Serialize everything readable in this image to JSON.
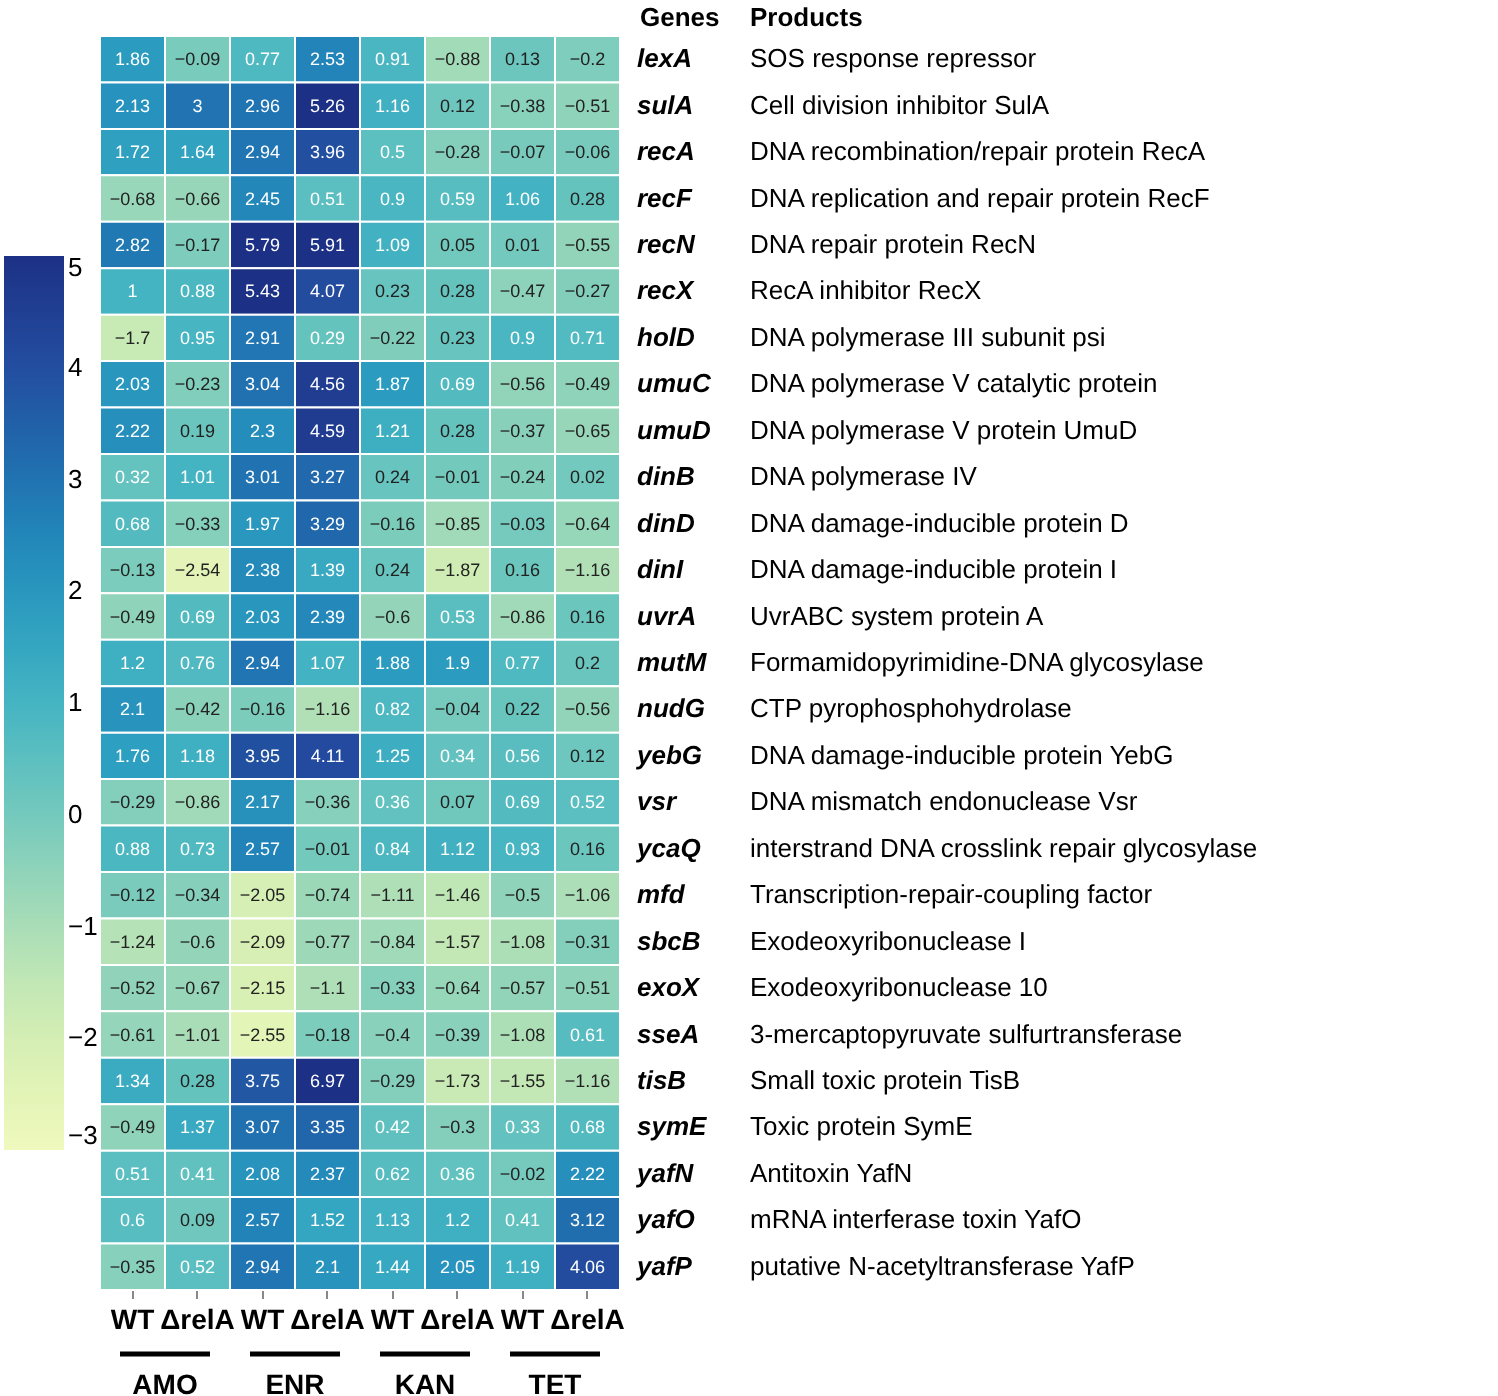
{
  "chart_data": {
    "type": "heatmap",
    "categories": [
      "WT",
      "ΔrelA",
      "WT",
      "ΔrelA",
      "WT",
      "ΔrelA",
      "WT",
      "ΔrelA"
    ],
    "y_categories": [
      "lexA",
      "sulA",
      "recA",
      "recF",
      "recN",
      "recX",
      "holD",
      "umuC",
      "umuD",
      "dinB",
      "dinD",
      "dinI",
      "uvrA",
      "mutM",
      "nudG",
      "yebG",
      "vsr",
      "ycaQ",
      "mfd",
      "sbcB",
      "exoX",
      "sseA",
      "tisB",
      "symE",
      "yafN",
      "yafO",
      "yafP"
    ],
    "y2_categories": [
      "SOS response repressor",
      "Cell division inhibitor SulA",
      "DNA recombination/repair protein RecA",
      "DNA replication and repair protein RecF",
      "DNA repair protein RecN",
      "RecA inhibitor RecX",
      "DNA polymerase III subunit psi",
      "DNA polymerase V catalytic protein",
      "DNA polymerase V protein UmuD",
      "DNA polymerase IV",
      "DNA damage-inducible protein D",
      "DNA damage-inducible protein I",
      "UvrABC system protein A",
      "Formamidopyrimidine-DNA glycosylase",
      "CTP pyrophosphohydrolase",
      "DNA damage-inducible protein YebG",
      "DNA mismatch endonuclease Vsr",
      "interstrand DNA crosslink repair glycosylase",
      "Transcription-repair-coupling factor",
      "Exodeoxyribonuclease I",
      "Exodeoxyribonuclease 10",
      "3-mercaptopyruvate sulfurtransferase",
      "Small toxic protein TisB",
      "Toxic protein SymE",
      "Antitoxin YafN",
      "mRNA interferase toxin YafO",
      "putative N-acetyltransferase YafP"
    ],
    "cells": [
      [
        1.86,
        -0.09,
        0.77,
        2.53,
        0.91,
        -0.88,
        0.13,
        -0.2
      ],
      [
        2.13,
        3,
        2.96,
        5.26,
        1.16,
        0.12,
        -0.38,
        -0.51
      ],
      [
        1.72,
        1.64,
        2.94,
        3.96,
        0.5,
        -0.28,
        -0.07,
        -0.06
      ],
      [
        -0.68,
        -0.66,
        2.45,
        0.51,
        0.9,
        0.59,
        1.06,
        0.28
      ],
      [
        2.82,
        -0.17,
        5.79,
        5.91,
        1.09,
        0.05,
        0.01,
        -0.55
      ],
      [
        1,
        0.88,
        5.43,
        4.07,
        0.23,
        0.28,
        -0.47,
        -0.27
      ],
      [
        -1.7,
        0.95,
        2.91,
        0.29,
        -0.22,
        0.23,
        0.9,
        0.71
      ],
      [
        2.03,
        -0.23,
        3.04,
        4.56,
        1.87,
        0.69,
        -0.56,
        -0.49
      ],
      [
        2.22,
        0.19,
        2.3,
        4.59,
        1.21,
        0.28,
        -0.37,
        -0.65
      ],
      [
        0.32,
        1.01,
        3.01,
        3.27,
        0.24,
        -0.01,
        -0.24,
        0.02
      ],
      [
        0.68,
        -0.33,
        1.97,
        3.29,
        -0.16,
        -0.85,
        -0.03,
        -0.64
      ],
      [
        -0.13,
        -2.54,
        2.38,
        1.39,
        0.24,
        -1.87,
        0.16,
        -1.16
      ],
      [
        -0.49,
        0.69,
        2.03,
        2.39,
        -0.6,
        0.53,
        -0.86,
        0.16
      ],
      [
        1.2,
        0.76,
        2.94,
        1.07,
        1.88,
        1.9,
        0.77,
        0.2
      ],
      [
        2.1,
        -0.42,
        -0.16,
        -1.16,
        0.82,
        -0.04,
        0.22,
        -0.56
      ],
      [
        1.76,
        1.18,
        3.95,
        4.11,
        1.25,
        0.34,
        0.56,
        0.12
      ],
      [
        -0.29,
        -0.86,
        2.17,
        -0.36,
        0.36,
        0.07,
        0.69,
        0.52
      ],
      [
        0.88,
        0.73,
        2.57,
        -0.01,
        0.84,
        1.12,
        0.93,
        0.16
      ],
      [
        -0.12,
        -0.34,
        -2.05,
        -0.74,
        -1.11,
        -1.46,
        -0.5,
        -1.06
      ],
      [
        -1.24,
        -0.6,
        -2.09,
        -0.77,
        -0.84,
        -1.57,
        -1.08,
        -0.31
      ],
      [
        -0.52,
        -0.67,
        -2.15,
        -1.1,
        -0.33,
        -0.64,
        -0.57,
        -0.51
      ],
      [
        -0.61,
        -1.01,
        -2.55,
        -0.18,
        -0.4,
        -0.39,
        -1.08,
        0.61
      ],
      [
        1.34,
        0.28,
        3.75,
        6.97,
        -0.29,
        -1.73,
        -1.55,
        -1.16
      ],
      [
        -0.49,
        1.37,
        3.07,
        3.35,
        0.42,
        -0.3,
        0.33,
        0.68
      ],
      [
        0.51,
        0.41,
        2.08,
        2.37,
        0.62,
        0.36,
        -0.02,
        2.22
      ],
      [
        0.6,
        0.09,
        2.57,
        1.52,
        1.13,
        1.2,
        0.41,
        3.12
      ],
      [
        -0.35,
        0.52,
        2.94,
        2.1,
        1.44,
        2.05,
        1.19,
        4.06
      ]
    ],
    "clim": [
      -3,
      5
    ],
    "cticks": [
      -3,
      -2,
      -1,
      0,
      1,
      2,
      3,
      4,
      5
    ],
    "data_labels": true,
    "annotations": [
      "Genes",
      "Products",
      "AMO",
      "ENR",
      "KAN",
      "TET"
    ]
  }
}
